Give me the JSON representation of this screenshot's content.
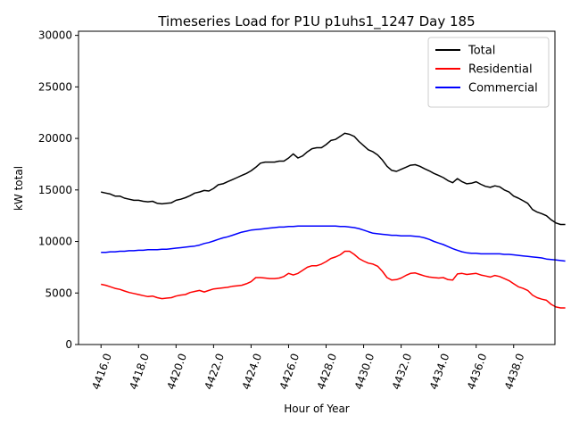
{
  "chart_data": {
    "type": "line",
    "title": "Timeseries Load for P1U p1uhs1_1247  Day 185",
    "xlabel": "Hour of Year",
    "ylabel": "kW total",
    "xlim": [
      4414.8,
      4440.2
    ],
    "ylim": [
      0,
      30400
    ],
    "x_start": 4416.0,
    "x_step": 0.25,
    "xticks": [
      4416,
      4418,
      4420,
      4422,
      4424,
      4426,
      4428,
      4430,
      4432,
      4434,
      4436,
      4438
    ],
    "xtick_labels": [
      "4416.0",
      "4418.0",
      "4420.0",
      "4422.0",
      "4424.0",
      "4426.0",
      "4428.0",
      "4430.0",
      "4432.0",
      "4434.0",
      "4436.0",
      "4438.0"
    ],
    "yticks": [
      0,
      5000,
      10000,
      15000,
      20000,
      25000,
      30000
    ],
    "ytick_labels": [
      "0",
      "5000",
      "10000",
      "15000",
      "20000",
      "25000",
      "30000"
    ],
    "legend_position": "top-right",
    "series": [
      {
        "name": "Total",
        "color": "#000000",
        "values": [
          14800,
          14700,
          14600,
          14400,
          14400,
          14200,
          14100,
          14000,
          14000,
          13900,
          13850,
          13900,
          13700,
          13650,
          13700,
          13750,
          14000,
          14100,
          14250,
          14450,
          14700,
          14800,
          14950,
          14900,
          15150,
          15500,
          15600,
          15800,
          16000,
          16200,
          16400,
          16600,
          16850,
          17200,
          17600,
          17700,
          17700,
          17700,
          17800,
          17800,
          18100,
          18500,
          18100,
          18300,
          18700,
          19000,
          19100,
          19100,
          19400,
          19800,
          19900,
          20200,
          20500,
          20400,
          20200,
          19700,
          19300,
          18900,
          18700,
          18400,
          17900,
          17300,
          16900,
          16800,
          17000,
          17200,
          17400,
          17450,
          17300,
          17050,
          16850,
          16600,
          16400,
          16200,
          15900,
          15700,
          16100,
          15800,
          15600,
          15650,
          15800,
          15550,
          15350,
          15250,
          15400,
          15300,
          15000,
          14800,
          14400,
          14200,
          13950,
          13700,
          13100,
          12850,
          12700,
          12500,
          12100,
          11800,
          11650,
          11650
        ]
      },
      {
        "name": "Residential",
        "color": "#ff0000",
        "values": [
          5850,
          5750,
          5600,
          5450,
          5350,
          5200,
          5050,
          4950,
          4850,
          4750,
          4650,
          4700,
          4550,
          4450,
          4500,
          4550,
          4700,
          4800,
          4850,
          5050,
          5150,
          5250,
          5100,
          5250,
          5400,
          5450,
          5500,
          5550,
          5650,
          5700,
          5750,
          5900,
          6100,
          6500,
          6500,
          6450,
          6400,
          6400,
          6450,
          6600,
          6900,
          6750,
          6900,
          7200,
          7500,
          7650,
          7650,
          7800,
          8050,
          8350,
          8500,
          8700,
          9050,
          9050,
          8750,
          8350,
          8100,
          7900,
          7800,
          7600,
          7100,
          6500,
          6250,
          6300,
          6450,
          6700,
          6900,
          6950,
          6800,
          6650,
          6550,
          6500,
          6450,
          6500,
          6300,
          6250,
          6850,
          6900,
          6800,
          6850,
          6900,
          6750,
          6650,
          6550,
          6700,
          6600,
          6400,
          6200,
          5900,
          5600,
          5450,
          5250,
          4800,
          4550,
          4400,
          4300,
          3900,
          3650,
          3550,
          3550
        ]
      },
      {
        "name": "Commercial",
        "color": "#0000ff",
        "values": [
          8950,
          8950,
          9000,
          9000,
          9050,
          9050,
          9100,
          9100,
          9150,
          9150,
          9200,
          9200,
          9200,
          9250,
          9250,
          9300,
          9350,
          9400,
          9450,
          9500,
          9550,
          9650,
          9800,
          9900,
          10050,
          10200,
          10350,
          10450,
          10600,
          10750,
          10900,
          11000,
          11100,
          11150,
          11200,
          11250,
          11300,
          11350,
          11400,
          11400,
          11450,
          11450,
          11500,
          11500,
          11500,
          11500,
          11500,
          11500,
          11500,
          11500,
          11500,
          11450,
          11450,
          11400,
          11350,
          11250,
          11100,
          10950,
          10800,
          10750,
          10700,
          10650,
          10600,
          10600,
          10550,
          10550,
          10550,
          10500,
          10450,
          10350,
          10200,
          10000,
          9850,
          9700,
          9500,
          9300,
          9150,
          9000,
          8900,
          8850,
          8850,
          8800,
          8800,
          8800,
          8800,
          8800,
          8750,
          8750,
          8700,
          8650,
          8600,
          8550,
          8500,
          8450,
          8400,
          8300,
          8250,
          8200,
          8150,
          8100
        ]
      }
    ]
  }
}
